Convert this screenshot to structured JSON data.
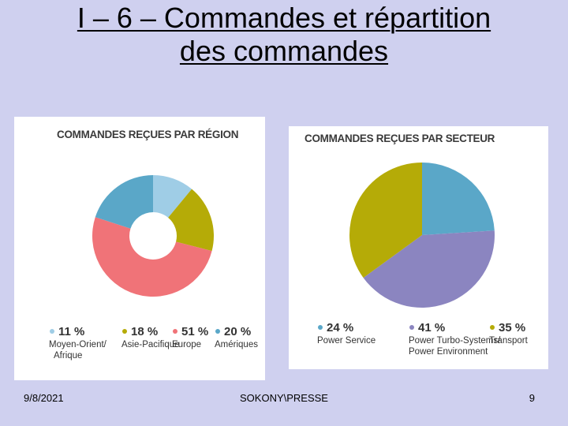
{
  "slide": {
    "title_line1": "I – 6 – Commandes et répartition",
    "title_line2": "des commandes"
  },
  "footer": {
    "date": "9/8/2021",
    "center": "SOKONY\\PRESSE",
    "page": "9"
  },
  "chart_data": [
    {
      "type": "pie",
      "title": "COMMANDES REÇUES PAR RÉGION",
      "donut": true,
      "legend_position": "bottom",
      "slices": [
        {
          "label": [
            "Moyen-Orient/",
            "Afrique"
          ],
          "value": 11,
          "value_label": "11 %",
          "color": "#9fcde6"
        },
        {
          "label": [
            "Asie-Pacifique"
          ],
          "value": 18,
          "value_label": "18 %",
          "color": "#b5ab07"
        },
        {
          "label": [
            "Europe"
          ],
          "value": 51,
          "value_label": "51 %",
          "color": "#f07378"
        },
        {
          "label": [
            "Amériques"
          ],
          "value": 20,
          "value_label": "20 %",
          "color": "#5aa7c8"
        }
      ]
    },
    {
      "type": "pie",
      "title": "COMMANDES REÇUES PAR SECTEUR",
      "donut": true,
      "legend_position": "bottom",
      "slices": [
        {
          "label": [
            "Power Service"
          ],
          "value": 24,
          "value_label": "24 %",
          "color": "#5aa7c8"
        },
        {
          "label": [
            "Power Turbo-Systems/",
            "Power Environment"
          ],
          "value": 41,
          "value_label": "41 %",
          "color": "#8b85c0"
        },
        {
          "label": [
            "Transport"
          ],
          "value": 35,
          "value_label": "35 %",
          "color": "#b5ab07"
        }
      ]
    }
  ]
}
